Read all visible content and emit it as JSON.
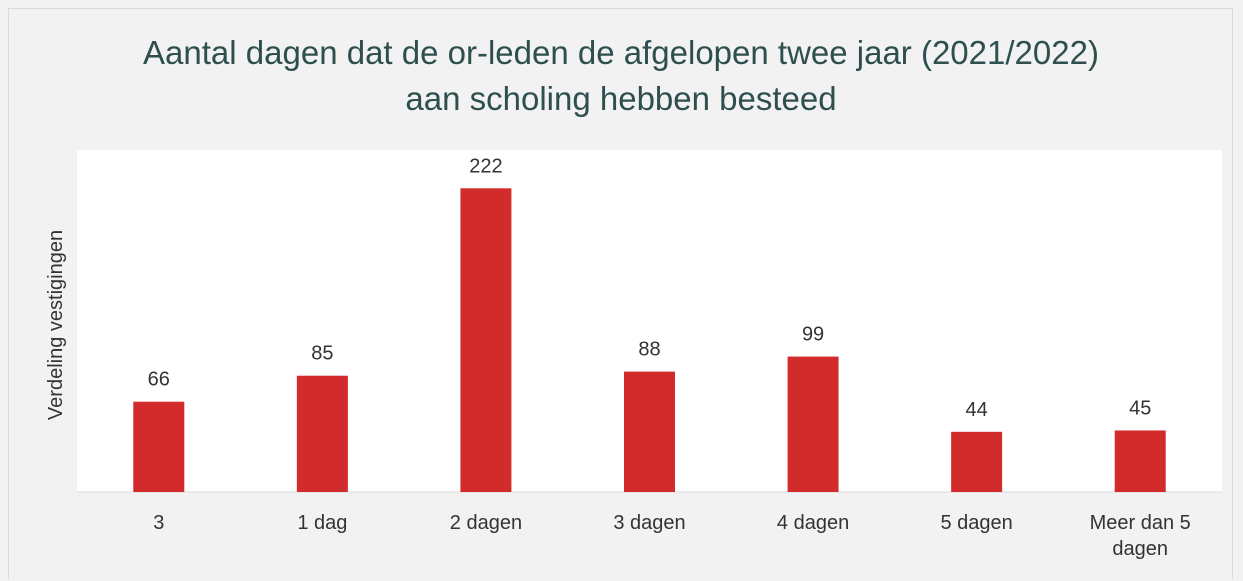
{
  "chart_data": {
    "type": "bar",
    "title": "Aantal dagen dat de or-leden de afgelopen twee jaar (2021/2022) aan scholing hebben besteed",
    "y_label": "Verdeling vestigingen",
    "categories": [
      "3",
      "1 dag",
      "2 dagen",
      "3 dagen",
      "4 dagen",
      "5 dagen",
      "Meer dan 5 dagen"
    ],
    "values": [
      66,
      85,
      222,
      88,
      99,
      44,
      45
    ],
    "color": "#d22b2b",
    "ylim": [
      0,
      250
    ],
    "grid": false
  }
}
